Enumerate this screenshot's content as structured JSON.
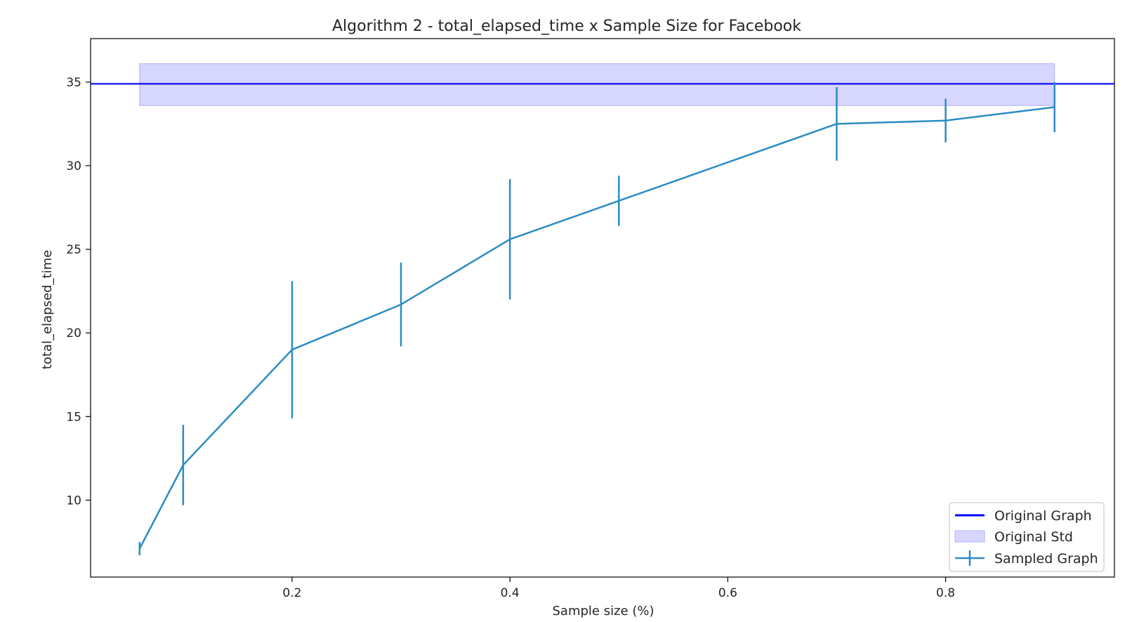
{
  "chart_data": {
    "type": "line",
    "title": "Algorithm 2 - total_elapsed_time x Sample Size for Facebook",
    "xlabel": "Sample size (%)",
    "ylabel": "total_elapsed_time",
    "xlim": [
      0.015,
      0.955
    ],
    "ylim": [
      5.4,
      37.6
    ],
    "x_ticks": [
      0.2,
      0.4,
      0.6,
      0.8
    ],
    "y_ticks": [
      10,
      15,
      20,
      25,
      30,
      35
    ],
    "grid": false,
    "legend_position": "lower-right",
    "original": {
      "name": "Original Graph",
      "value": 34.9,
      "color": "#0000ff",
      "std_name": "Original Std",
      "std_low": 33.6,
      "std_high": 36.1,
      "std_x_range": [
        0.06,
        0.9
      ],
      "std_color": "#ccccff"
    },
    "sampled": {
      "name": "Sampled Graph",
      "color": "#2b8cc4",
      "x": [
        0.06,
        0.1,
        0.2,
        0.3,
        0.4,
        0.5,
        0.7,
        0.8,
        0.9
      ],
      "y": [
        7.1,
        12.1,
        19.0,
        21.7,
        25.6,
        27.9,
        32.5,
        32.7,
        33.5
      ],
      "err": [
        0.4,
        2.4,
        4.1,
        2.5,
        3.6,
        1.5,
        2.2,
        1.3,
        1.5
      ]
    }
  }
}
